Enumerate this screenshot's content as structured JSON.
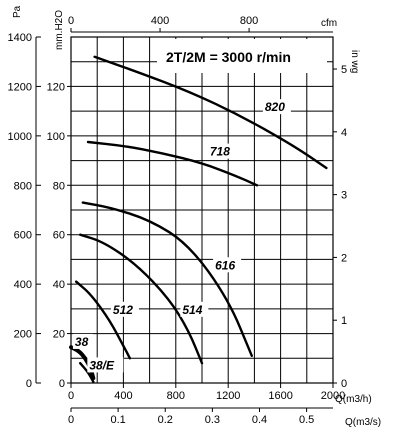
{
  "chart_data": {
    "type": "line",
    "title": "2T/2M = 3000 r/min",
    "units": {
      "pa": "Pa",
      "mmh2o": "mm.H2O",
      "inwg": "in wg",
      "cfm": "cfm",
      "m3h": "Q(m3/h)",
      "m3s": "Q(m3/s)"
    },
    "axes": {
      "pa": {
        "range": [
          0,
          1400
        ],
        "ticks": [
          "0",
          "200",
          "400",
          "600",
          "800",
          "1000",
          "1200",
          "1400"
        ]
      },
      "mmh2o": {
        "range": [
          0,
          140
        ],
        "ticks": [
          "0",
          "20",
          "40",
          "60",
          "80",
          "100",
          "120"
        ]
      },
      "inwg": {
        "range": [
          0,
          5.51
        ],
        "ticks": [
          "0",
          "1",
          "2",
          "3",
          "4",
          "5"
        ]
      },
      "m3h": {
        "range": [
          0,
          2000
        ],
        "ticks": [
          "0",
          "400",
          "800",
          "1200",
          "1600",
          "2000"
        ]
      },
      "m3s": {
        "range": [
          0,
          0.556
        ],
        "ticks": [
          "0",
          "0.1",
          "0.2",
          "0.3",
          "0.4",
          "0.5"
        ]
      },
      "cfm": {
        "range": [
          0,
          1177
        ],
        "ticks": [
          "0",
          "400",
          "800"
        ]
      }
    },
    "grid": true,
    "series": [
      {
        "name": "820",
        "x": [
          180,
          500,
          900,
          1300,
          1700,
          1950
        ],
        "y": [
          1320,
          1260,
          1180,
          1080,
          960,
          870
        ]
      },
      {
        "name": "718",
        "x": [
          130,
          400,
          700,
          1000,
          1250,
          1420
        ],
        "y": [
          975,
          960,
          930,
          890,
          840,
          800
        ]
      },
      {
        "name": "616",
        "x": [
          90,
          300,
          600,
          900,
          1200,
          1380
        ],
        "y": [
          730,
          710,
          660,
          560,
          340,
          110
        ]
      },
      {
        "name": "514",
        "x": [
          70,
          250,
          500,
          750,
          900,
          1000
        ],
        "y": [
          600,
          570,
          480,
          340,
          210,
          80
        ]
      },
      {
        "name": "512",
        "x": [
          40,
          150,
          300,
          400,
          450
        ],
        "y": [
          410,
          360,
          250,
          150,
          100
        ]
      },
      {
        "name": "38",
        "x": [
          0,
          60,
          110,
          150,
          170
        ],
        "y": [
          145,
          130,
          100,
          60,
          20
        ]
      },
      {
        "name": "38/E",
        "x": [
          70,
          120,
          150,
          170
        ],
        "y": [
          80,
          50,
          25,
          5
        ]
      }
    ],
    "labels": [
      {
        "text": "820",
        "x": 1480,
        "y": 1100
      },
      {
        "text": "718",
        "x": 1060,
        "y": 920
      },
      {
        "text": "616",
        "x": 1100,
        "y": 460
      },
      {
        "text": "514",
        "x": 850,
        "y": 280
      },
      {
        "text": "512",
        "x": 320,
        "y": 280
      },
      {
        "text": "38",
        "x": 30,
        "y": 150
      },
      {
        "text": "38/E",
        "x": 140,
        "y": 55
      }
    ]
  }
}
